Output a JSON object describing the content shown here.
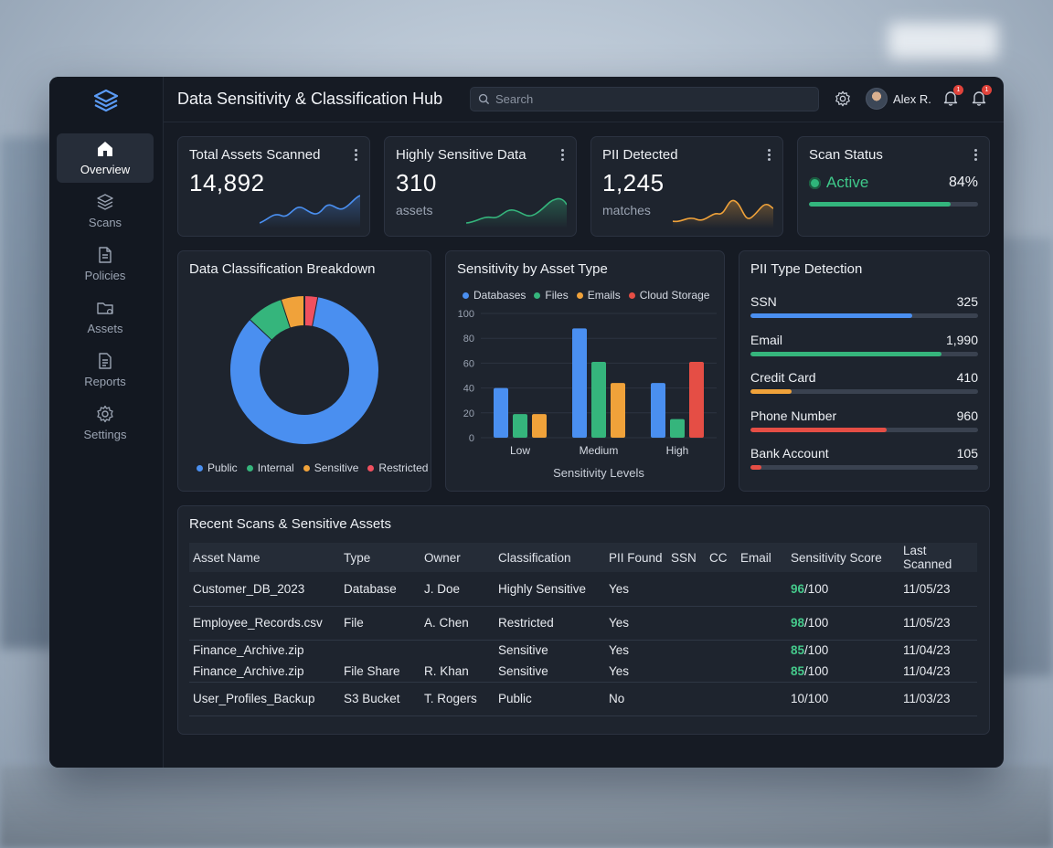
{
  "app": {
    "title": "Data Sensitivity & Classification Hub",
    "search_placeholder": "Search",
    "user_name": "Alex R.",
    "notification_badges": [
      "1",
      "1"
    ]
  },
  "sidebar": {
    "items": [
      {
        "label": "Overview",
        "icon": "home-icon",
        "active": true
      },
      {
        "label": "Scans",
        "icon": "layers-icon",
        "active": false
      },
      {
        "label": "Policies",
        "icon": "document-icon",
        "active": false
      },
      {
        "label": "Assets",
        "icon": "folder-icon",
        "active": false
      },
      {
        "label": "Reports",
        "icon": "report-icon",
        "active": false
      },
      {
        "label": "Settings",
        "icon": "gear-icon",
        "active": false
      }
    ]
  },
  "kpis": {
    "total_assets": {
      "title": "Total Assets Scanned",
      "value": "14,892"
    },
    "highly_sensitive": {
      "title": "Highly Sensitive Data",
      "value": "310",
      "unit": "assets"
    },
    "pii_detected": {
      "title": "PII Detected",
      "value": "1,245",
      "unit": "matches"
    },
    "scan_status": {
      "title": "Scan Status",
      "status": "Active",
      "percent_label": "84%",
      "progress": 0.84
    }
  },
  "colors": {
    "blue": "#4a8ff0",
    "green": "#35b57c",
    "orange": "#f0a23a",
    "red": "#e54e45",
    "pink": "#f0505f"
  },
  "donut": {
    "title": "Data Classification Breakdown",
    "legend": [
      "Public",
      "Internal",
      "Sensitive",
      "Restricted"
    ]
  },
  "bar_chart": {
    "title": "Sensitivity by Asset Type",
    "xlabel": "Sensitivity Levels"
  },
  "chart_data": [
    {
      "type": "pie",
      "title": "Data Classification Breakdown",
      "categories": [
        "Public",
        "Internal",
        "Sensitive",
        "Restricted"
      ],
      "values": [
        84,
        8,
        5,
        3
      ]
    },
    {
      "type": "bar",
      "title": "Sensitivity by Asset Type",
      "xlabel": "Sensitivity Levels",
      "ylabel": "",
      "categories": [
        "Low",
        "Medium",
        "High"
      ],
      "ylim": [
        0,
        100
      ],
      "yticks": [
        0,
        20,
        40,
        60,
        80,
        100
      ],
      "series": [
        {
          "name": "Databases",
          "values": [
            40,
            88,
            44
          ]
        },
        {
          "name": "Files",
          "values": [
            19,
            61,
            15
          ]
        },
        {
          "name": "Emails",
          "values": [
            19,
            44,
            0
          ]
        },
        {
          "name": "Cloud Storage",
          "values": [
            0,
            0,
            61
          ]
        }
      ]
    },
    {
      "type": "bar",
      "title": "PII Type Detection",
      "categories": [
        "SSN",
        "Email",
        "Credit Card",
        "Phone Number",
        "Bank Account"
      ],
      "labels": [
        "325",
        "1,990",
        "410",
        "960",
        "105"
      ],
      "fill_fraction": [
        0.71,
        0.84,
        0.18,
        0.6,
        0.05
      ]
    }
  ],
  "pii": {
    "title": "PII Type Detection"
  },
  "table": {
    "title": "Recent Scans & Sensitive Assets",
    "columns": [
      "Asset Name",
      "Type",
      "Owner",
      "Classification",
      "PII Found",
      "SSN",
      "CC",
      "Email",
      "Sensitivity Score",
      "Last Scanned"
    ],
    "rows": [
      {
        "asset": "Customer_DB_2023",
        "type": "Database",
        "owner": "J. Doe",
        "classification": "Highly Sensitive",
        "cls": "orange",
        "pii": "Yes",
        "score_num": "96",
        "score_den": "/100",
        "score_green": true,
        "last": "11/05/23"
      },
      {
        "asset": "Employee_Records.csv",
        "type": "File",
        "owner": "A. Chen",
        "classification": "Restricted",
        "cls": "red",
        "pii": "Yes",
        "score_num": "98",
        "score_den": "/100",
        "score_green": true,
        "last": "11/05/23"
      },
      {
        "asset": "Finance_Archive.zip",
        "type": "",
        "owner": "",
        "classification": "Sensitive",
        "cls": "orange",
        "pii": "Yes",
        "score_num": "85",
        "score_den": "/100",
        "score_green": true,
        "last": "11/04/23"
      },
      {
        "asset": "Finance_Archive.zip",
        "type": "File Share",
        "owner": "R. Khan",
        "classification": "Sensitive",
        "cls": "orange",
        "pii": "Yes",
        "score_num": "85",
        "score_den": "/100",
        "score_green": true,
        "last": "11/04/23"
      },
      {
        "asset": "User_Profiles_Backup",
        "type": "S3 Bucket",
        "owner": "T. Rogers",
        "classification": "Public",
        "cls": "blue",
        "pii": "No",
        "score_num": "10",
        "score_den": "/100",
        "score_green": false,
        "last": "11/03/23"
      }
    ]
  }
}
